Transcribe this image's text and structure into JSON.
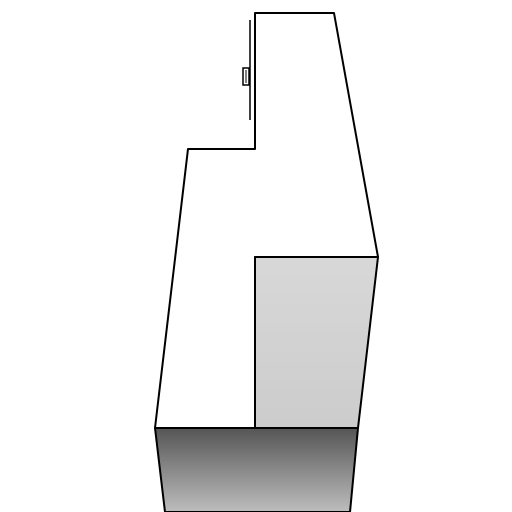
{
  "scene": {
    "background_color": "#ffffff",
    "outline_color": "#000000",
    "colors": {
      "top_face": "#ffffff",
      "front_face_light": "#d8d8d8",
      "front_face_mid": "#cccccc",
      "base_gradient_top": "#555555",
      "base_gradient_bottom": "#bdbdbd",
      "detail_tab": "#ffffff"
    },
    "icon_names": [
      "notch-tab-icon"
    ]
  }
}
